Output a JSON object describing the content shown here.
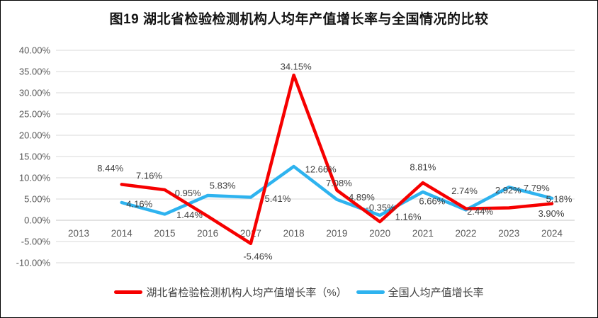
{
  "figure": {
    "title": "图19 湖北省检验检测机构人均年产值增长率与全国情况的比较"
  },
  "chart_data": {
    "type": "line",
    "x_categories": [
      "2013",
      "2014",
      "2015",
      "2016",
      "2017",
      "2018",
      "2019",
      "2020",
      "2021",
      "2022",
      "2023",
      "2024"
    ],
    "ylim": [
      -10,
      40
    ],
    "ytick_step": 5,
    "ytick_labels": [
      "40.00%",
      "35.00%",
      "30.00%",
      "25.00%",
      "20.00%",
      "15.00%",
      "10.00%",
      "5.00%",
      "0.00%",
      "-5.00%",
      "-10.00%"
    ],
    "grid": true,
    "legend_position": "bottom",
    "colors": {
      "hubei_red": "#f60000",
      "national_blue": "#2eb3ef",
      "gridline": "#d9d9d9",
      "axis_line": "#c4c4c4",
      "tick_text": "#595959",
      "label_text": "#3f3f3f"
    },
    "series": [
      {
        "id": "hubei",
        "name": "湖北省检验检测机构人均产值增长率（%）",
        "color": "#f60000",
        "start_year": "2014",
        "values": [
          8.44,
          7.16,
          0.95,
          -5.46,
          34.15,
          7.08,
          -0.35,
          8.81,
          2.74,
          2.92,
          3.9
        ],
        "labels": [
          "8.44%",
          "7.16%",
          "0.95%",
          "-5.46%",
          "34.15%",
          "7.08%",
          "-0.35%",
          "8.81%",
          "2.74%",
          "2.92%",
          "3.90%"
        ],
        "label_offsets": [
          [
            -16,
            -23
          ],
          [
            -22,
            -20
          ],
          [
            -28,
            -33
          ],
          [
            10,
            18
          ],
          [
            3,
            -12
          ],
          [
            3,
            -10
          ],
          [
            1,
            -20
          ],
          [
            0,
            -22
          ],
          [
            -2,
            -25
          ],
          [
            -1,
            -25
          ],
          [
            -1,
            14
          ]
        ]
      },
      {
        "id": "national",
        "name": "全国人均产值增长率",
        "color": "#2eb3ef",
        "start_year": "2014",
        "values": [
          4.16,
          1.44,
          5.83,
          5.41,
          12.66,
          4.89,
          1.16,
          6.66,
          2.44,
          7.79,
          5.18
        ],
        "labels": [
          "4.16%",
          "1.44%",
          "5.83%",
          "5.41%",
          "12.66%",
          "4.89%",
          "1.16%",
          "6.66%",
          "2.44%",
          "7.79%",
          "5.18%"
        ],
        "label_offsets": [
          [
            25,
            2
          ],
          [
            35,
            1
          ],
          [
            21,
            -14
          ],
          [
            38,
            2
          ],
          [
            38,
            4
          ],
          [
            35,
            -3
          ],
          [
            40,
            2
          ],
          [
            13,
            13
          ],
          [
            20,
            2
          ],
          [
            39,
            1
          ],
          [
            10,
            1
          ]
        ]
      }
    ]
  }
}
